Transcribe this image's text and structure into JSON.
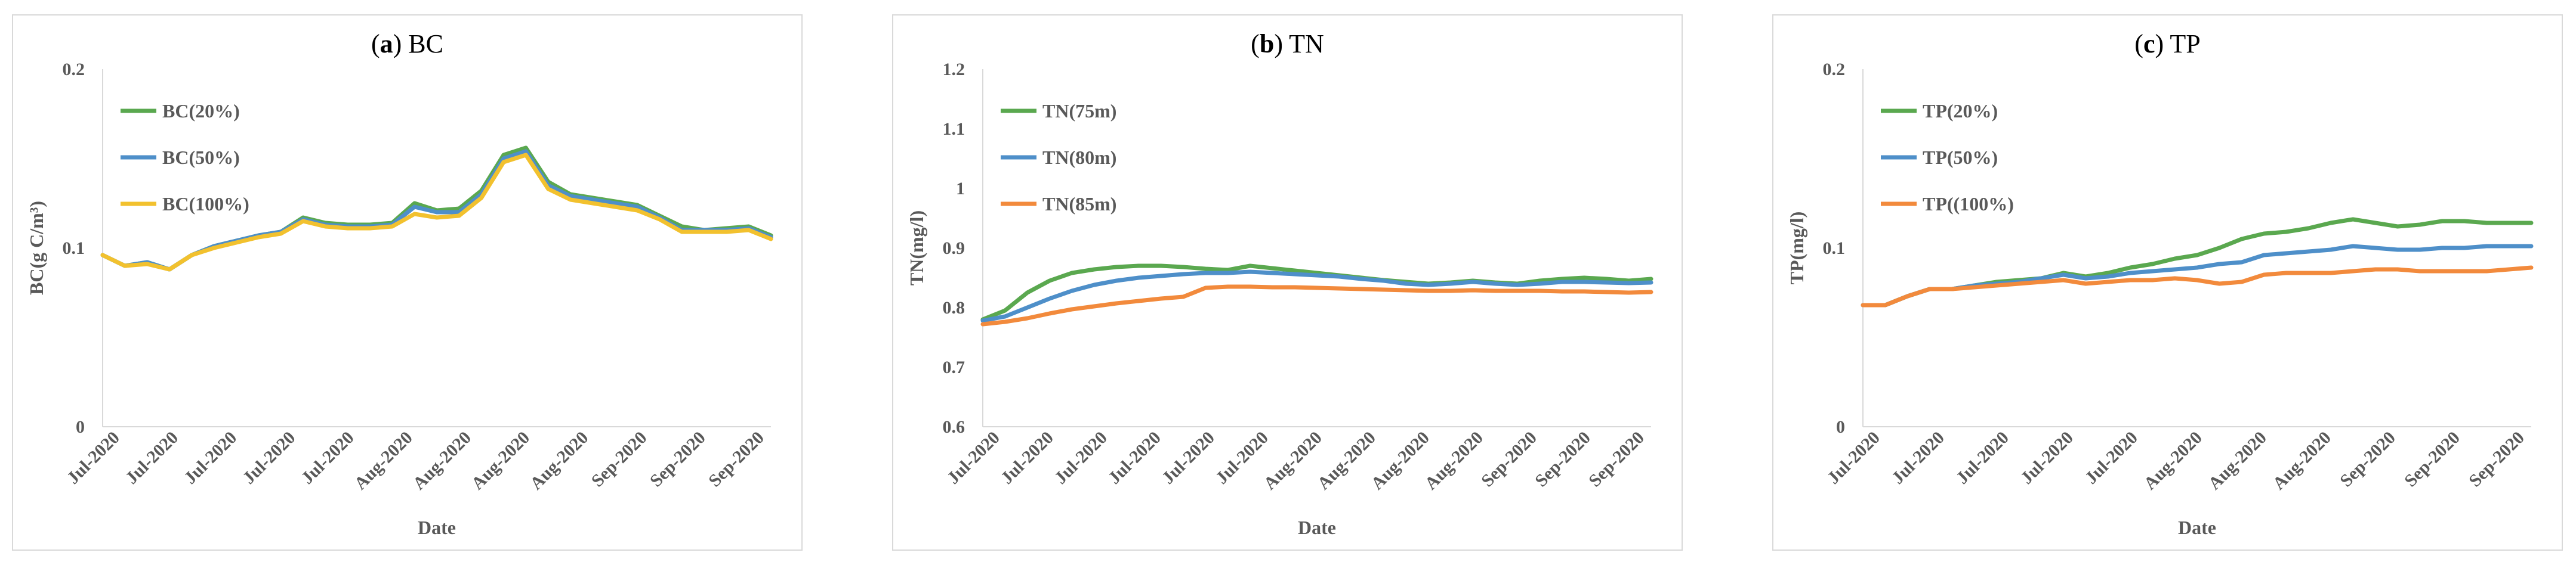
{
  "chart_data": [
    {
      "type": "line",
      "panel_letter": "a",
      "title": "BC",
      "xlabel": "Date",
      "ylabel": "BC(g C/m³)",
      "ylim": [
        0,
        0.2
      ],
      "yticks": [
        "0",
        "0.1",
        "0.2"
      ],
      "xticks": [
        "Jul-2020",
        "Jul-2020",
        "Jul-2020",
        "Jul-2020",
        "Jul-2020",
        "Aug-2020",
        "Aug-2020",
        "Aug-2020",
        "Aug-2020",
        "Sep-2020",
        "Sep-2020",
        "Sep-2020"
      ],
      "x": [
        0,
        3,
        6,
        9,
        12,
        15,
        18,
        21,
        24,
        27,
        30,
        33,
        36,
        39,
        42,
        45,
        48,
        51,
        54,
        57,
        60,
        63,
        66,
        69,
        72,
        75,
        78,
        81,
        84,
        87,
        90
      ],
      "grid": false,
      "legend_position": "top-left",
      "series": [
        {
          "name": "BC(20%)",
          "color": "#5aa84f",
          "values": [
            0.096,
            0.09,
            0.092,
            0.088,
            0.096,
            0.101,
            0.104,
            0.107,
            0.109,
            0.117,
            0.114,
            0.113,
            0.113,
            0.114,
            0.125,
            0.121,
            0.122,
            0.132,
            0.152,
            0.156,
            0.137,
            0.13,
            0.128,
            0.126,
            0.124,
            0.118,
            0.112,
            0.11,
            0.111,
            0.112,
            0.107
          ]
        },
        {
          "name": "BC(50%)",
          "color": "#4e8fc9",
          "values": [
            0.096,
            0.09,
            0.092,
            0.088,
            0.096,
            0.101,
            0.104,
            0.107,
            0.109,
            0.116,
            0.113,
            0.112,
            0.112,
            0.113,
            0.123,
            0.12,
            0.12,
            0.13,
            0.15,
            0.154,
            0.135,
            0.129,
            0.127,
            0.125,
            0.123,
            0.117,
            0.11,
            0.11,
            0.11,
            0.111,
            0.106
          ]
        },
        {
          "name": "BC(100%)",
          "color": "#f2c12e",
          "values": [
            0.096,
            0.09,
            0.091,
            0.088,
            0.096,
            0.1,
            0.103,
            0.106,
            0.108,
            0.115,
            0.112,
            0.111,
            0.111,
            0.112,
            0.119,
            0.117,
            0.118,
            0.128,
            0.148,
            0.152,
            0.133,
            0.127,
            0.125,
            0.123,
            0.121,
            0.116,
            0.109,
            0.109,
            0.109,
            0.11,
            0.105
          ]
        }
      ]
    },
    {
      "type": "line",
      "panel_letter": "b",
      "title": "TN",
      "xlabel": "Date",
      "ylabel": "TN(mg/l)",
      "ylim": [
        0.6,
        1.2
      ],
      "yticks": [
        "0.6",
        "0.7",
        "0.8",
        "0.9",
        "1",
        "1.1",
        "1.2"
      ],
      "xticks": [
        "Jul-2020",
        "Jul-2020",
        "Jul-2020",
        "Jul-2020",
        "Jul-2020",
        "Jul-2020",
        "Aug-2020",
        "Aug-2020",
        "Aug-2020",
        "Aug-2020",
        "Sep-2020",
        "Sep-2020",
        "Sep-2020"
      ],
      "x": [
        0,
        3,
        6,
        9,
        12,
        15,
        18,
        21,
        24,
        27,
        30,
        33,
        36,
        39,
        42,
        45,
        48,
        51,
        54,
        57,
        60,
        63,
        66,
        69,
        72,
        75,
        78,
        81,
        84,
        87,
        90
      ],
      "grid": false,
      "legend_position": "top-left",
      "series": [
        {
          "name": "TN(75m)",
          "color": "#5aa84f",
          "values": [
            0.78,
            0.795,
            0.825,
            0.845,
            0.858,
            0.864,
            0.868,
            0.87,
            0.87,
            0.868,
            0.865,
            0.863,
            0.87,
            0.866,
            0.862,
            0.858,
            0.854,
            0.85,
            0.846,
            0.843,
            0.84,
            0.842,
            0.845,
            0.842,
            0.84,
            0.845,
            0.848,
            0.85,
            0.848,
            0.845,
            0.848
          ]
        },
        {
          "name": "TN(80m)",
          "color": "#4e8fc9",
          "values": [
            0.778,
            0.785,
            0.8,
            0.815,
            0.828,
            0.838,
            0.845,
            0.85,
            0.853,
            0.856,
            0.858,
            0.858,
            0.86,
            0.858,
            0.856,
            0.854,
            0.852,
            0.848,
            0.845,
            0.84,
            0.838,
            0.84,
            0.843,
            0.84,
            0.838,
            0.84,
            0.843,
            0.843,
            0.842,
            0.841,
            0.842
          ]
        },
        {
          "name": "TN(85m)",
          "color": "#f28a3c",
          "values": [
            0.772,
            0.776,
            0.782,
            0.79,
            0.797,
            0.802,
            0.807,
            0.811,
            0.815,
            0.818,
            0.833,
            0.835,
            0.835,
            0.834,
            0.834,
            0.833,
            0.832,
            0.831,
            0.83,
            0.829,
            0.828,
            0.828,
            0.829,
            0.828,
            0.828,
            0.828,
            0.827,
            0.827,
            0.826,
            0.825,
            0.826
          ]
        }
      ]
    },
    {
      "type": "line",
      "panel_letter": "c",
      "title": "TP",
      "xlabel": "Date",
      "ylabel": "TP(mg/l)",
      "ylim": [
        0,
        0.2
      ],
      "yticks": [
        "0",
        "0.1",
        "0.2"
      ],
      "xticks": [
        "Jul-2020",
        "Jul-2020",
        "Jul-2020",
        "Jul-2020",
        "Jul-2020",
        "Aug-2020",
        "Aug-2020",
        "Aug-2020",
        "Sep-2020",
        "Sep-2020",
        "Sep-2020"
      ],
      "x": [
        0,
        3,
        6,
        9,
        12,
        15,
        18,
        21,
        24,
        27,
        30,
        33,
        36,
        39,
        42,
        45,
        48,
        51,
        54,
        57,
        60,
        63,
        66,
        69,
        72,
        75,
        78,
        81,
        84,
        87,
        90
      ],
      "grid": false,
      "legend_position": "top-left",
      "series": [
        {
          "name": "TP(20%)",
          "color": "#5aa84f",
          "values": [
            0.068,
            0.068,
            0.073,
            0.077,
            0.077,
            0.079,
            0.081,
            0.082,
            0.083,
            0.086,
            0.084,
            0.086,
            0.089,
            0.091,
            0.094,
            0.096,
            0.1,
            0.105,
            0.108,
            0.109,
            0.111,
            0.114,
            0.116,
            0.114,
            0.112,
            0.113,
            0.115,
            0.115,
            0.114,
            0.114,
            0.114
          ]
        },
        {
          "name": "TP(50%)",
          "color": "#4e8fc9",
          "values": [
            0.068,
            0.068,
            0.073,
            0.077,
            0.077,
            0.079,
            0.08,
            0.081,
            0.083,
            0.085,
            0.083,
            0.084,
            0.086,
            0.087,
            0.088,
            0.089,
            0.091,
            0.092,
            0.096,
            0.097,
            0.098,
            0.099,
            0.101,
            0.1,
            0.099,
            0.099,
            0.1,
            0.1,
            0.101,
            0.101,
            0.101
          ]
        },
        {
          "name": "TP((100%)",
          "color": "#f28a3c",
          "values": [
            0.068,
            0.068,
            0.073,
            0.077,
            0.077,
            0.078,
            0.079,
            0.08,
            0.081,
            0.082,
            0.08,
            0.081,
            0.082,
            0.082,
            0.083,
            0.082,
            0.08,
            0.081,
            0.085,
            0.086,
            0.086,
            0.086,
            0.087,
            0.088,
            0.088,
            0.087,
            0.087,
            0.087,
            0.087,
            0.088,
            0.089
          ]
        }
      ]
    }
  ]
}
